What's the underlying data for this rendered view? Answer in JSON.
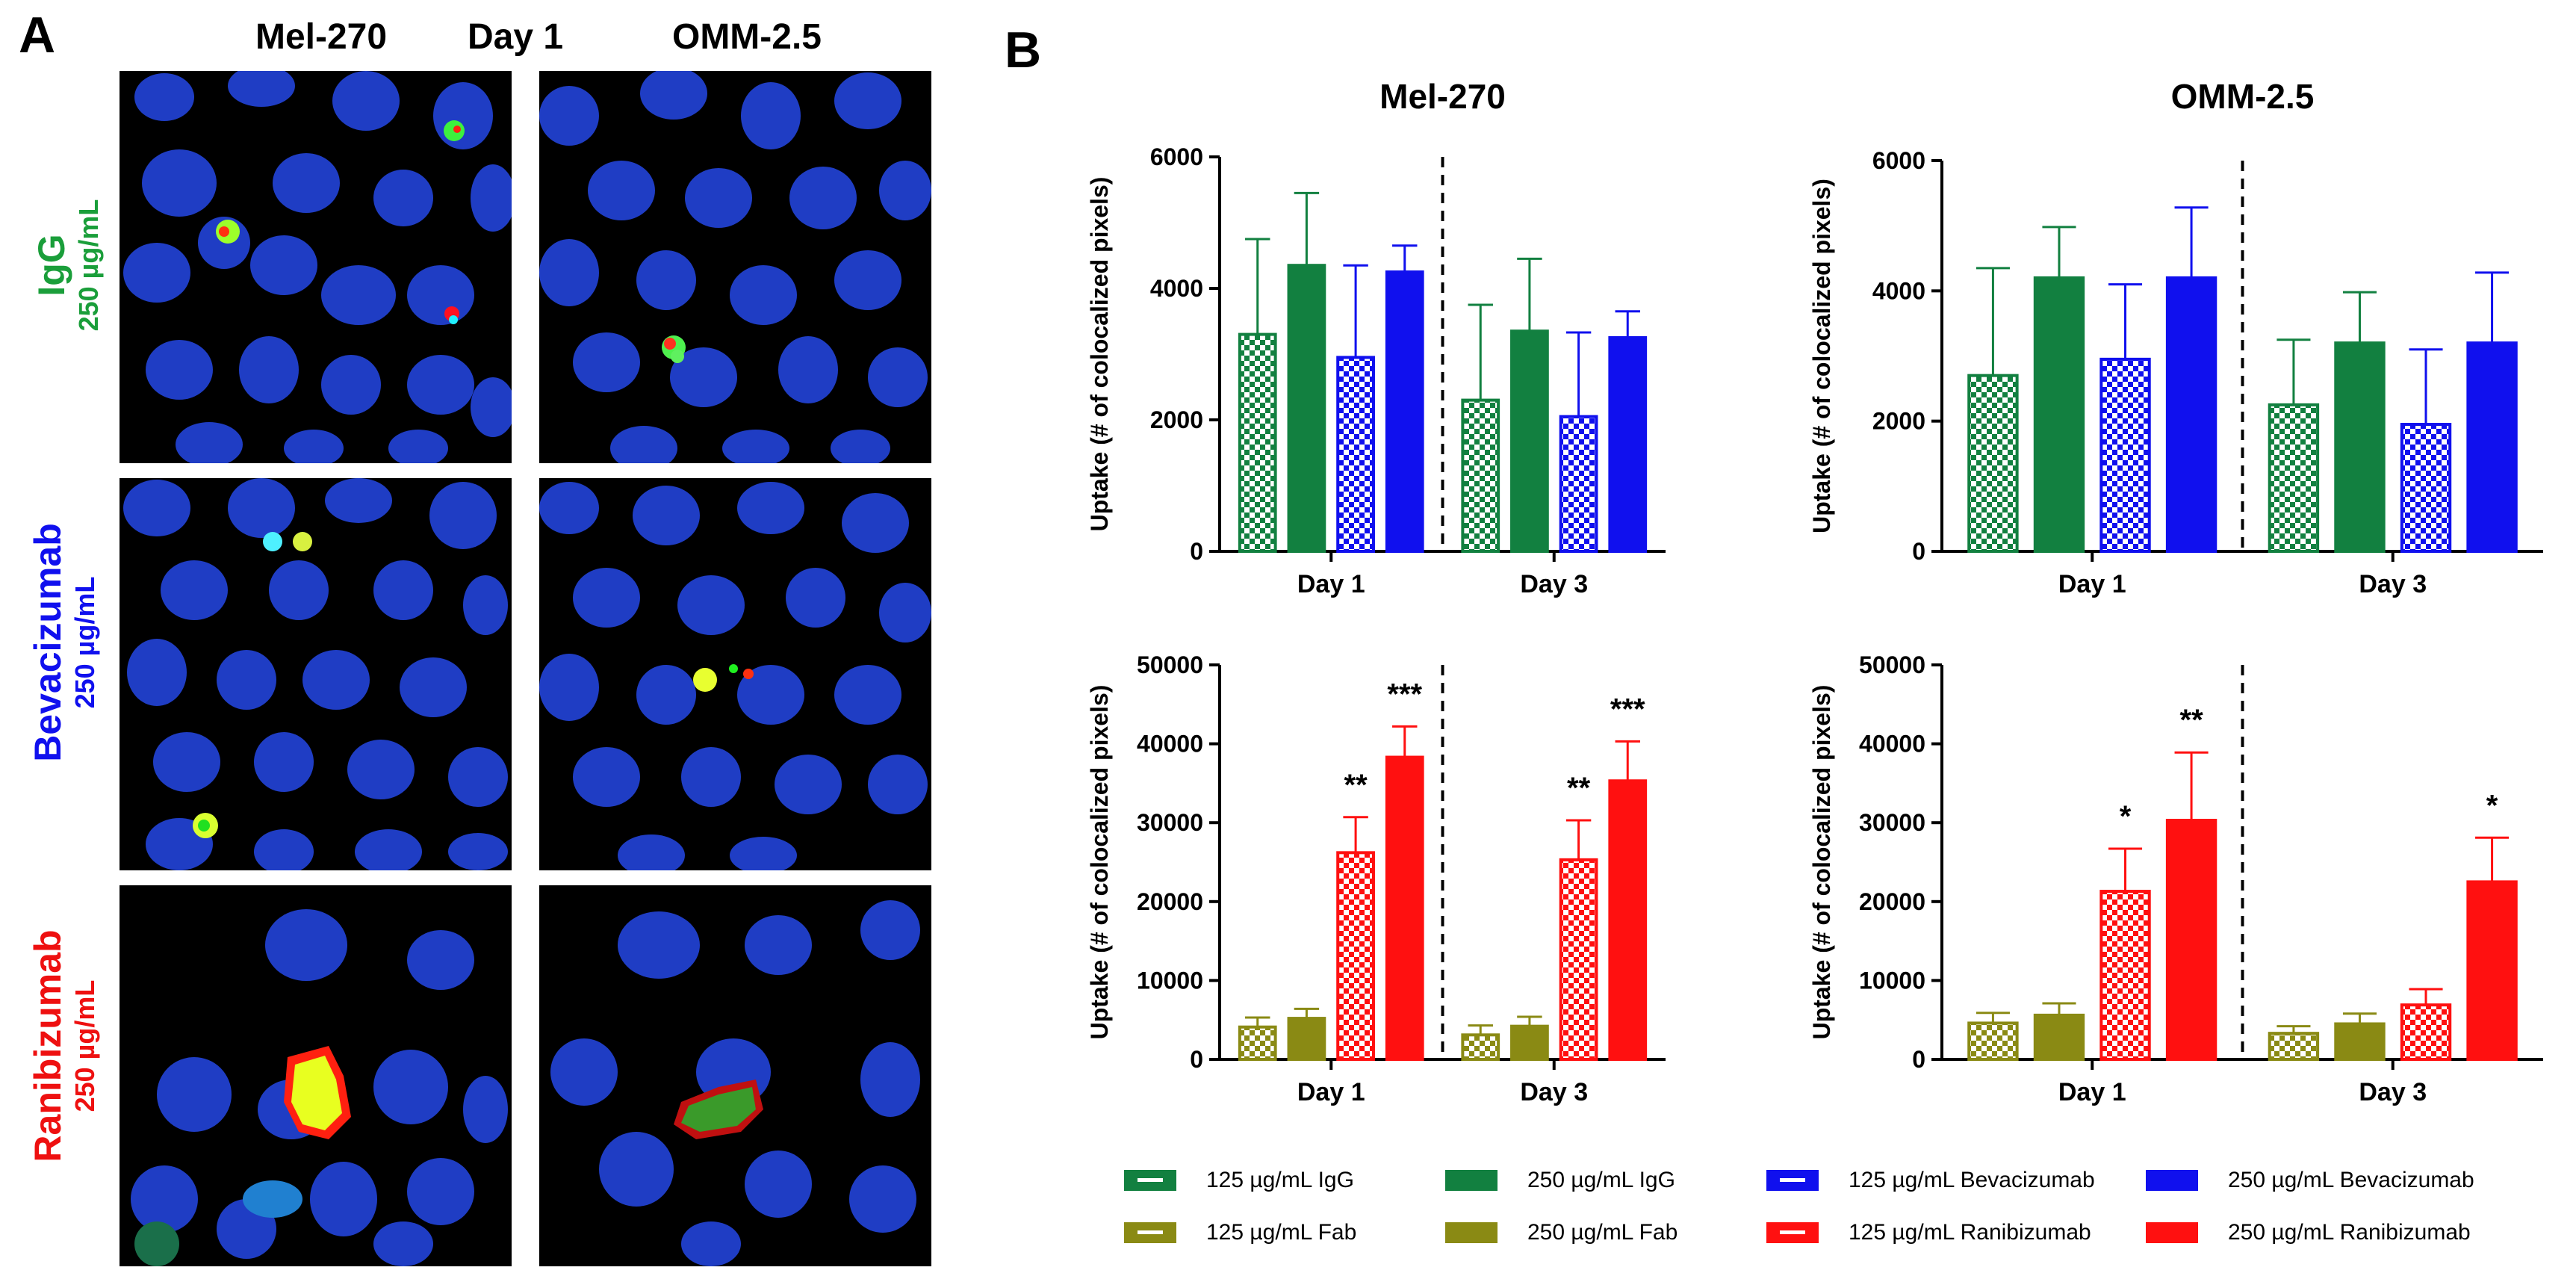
{
  "panelA": {
    "letter": "A",
    "columns": [
      "Mel-270",
      "Day 1",
      "OMM-2.5"
    ],
    "rows": [
      {
        "name": "IgG",
        "conc": "250 µg/mL",
        "color": "#1a9e3a"
      },
      {
        "name": "Bevacizumab",
        "conc": "250 µg/mL",
        "color": "#1010ee"
      },
      {
        "name": "Ranibizumab",
        "conc": "250 µg/mL",
        "color": "#ee1010"
      }
    ]
  },
  "panelB": {
    "letter": "B",
    "ylabel": "Uptake (# of colocalized pixels)"
  },
  "colors": {
    "igg": "#128040",
    "bev": "#1010ee",
    "fab": "#8a8a14",
    "rani": "#ff1010"
  },
  "legend": [
    {
      "label": "125 µg/mL IgG",
      "color": "#128040",
      "pattern": "checker"
    },
    {
      "label": "250 µg/mL IgG",
      "color": "#128040",
      "pattern": "solid"
    },
    {
      "label": "125 µg/mL Bevacizumab",
      "color": "#1010ee",
      "pattern": "checker"
    },
    {
      "label": "250 µg/mL Bevacizumab",
      "color": "#1010ee",
      "pattern": "solid"
    },
    {
      "label": "125 µg/mL Fab",
      "color": "#8a8a14",
      "pattern": "checker"
    },
    {
      "label": "250 µg/mL Fab",
      "color": "#8a8a14",
      "pattern": "solid"
    },
    {
      "label": "125 µg/mL Ranibizumab",
      "color": "#ff1010",
      "pattern": "checker"
    },
    {
      "label": "250 µg/mL Ranibizumab",
      "color": "#ff1010",
      "pattern": "solid"
    }
  ],
  "chart_data": [
    {
      "type": "bar",
      "title": "Mel-270",
      "ylabel": "Uptake (# of colocalized pixels)",
      "ylim": [
        0,
        6000
      ],
      "yticks": [
        0,
        2000,
        4000,
        6000
      ],
      "categories": [
        "Day 1",
        "Day 3"
      ],
      "series": [
        {
          "name": "125 µg/mL IgG",
          "color": "#128040",
          "pattern": "checker",
          "values": [
            3300,
            2300
          ],
          "errors": [
            1450,
            1450
          ],
          "sig": [
            "",
            ""
          ]
        },
        {
          "name": "250 µg/mL IgG",
          "color": "#128040",
          "pattern": "solid",
          "values": [
            4350,
            3350
          ],
          "errors": [
            1100,
            1100
          ],
          "sig": [
            "",
            ""
          ]
        },
        {
          "name": "125 µg/mL Bevacizumab",
          "color": "#1010ee",
          "pattern": "checker",
          "values": [
            2950,
            2050
          ],
          "errors": [
            1400,
            1280
          ],
          "sig": [
            "",
            ""
          ]
        },
        {
          "name": "250 µg/mL Bevacizumab",
          "color": "#1010ee",
          "pattern": "solid",
          "values": [
            4250,
            3250
          ],
          "errors": [
            400,
            400
          ],
          "sig": [
            "",
            ""
          ]
        }
      ]
    },
    {
      "type": "bar",
      "title": "OMM-2.5",
      "ylabel": "Uptake (# of colocalized pixels)",
      "ylim": [
        0,
        6000
      ],
      "yticks": [
        0,
        2000,
        4000,
        6000
      ],
      "categories": [
        "Day 1",
        "Day 3"
      ],
      "series": [
        {
          "name": "125 µg/mL IgG",
          "color": "#128040",
          "pattern": "checker",
          "values": [
            2700,
            2250
          ],
          "errors": [
            1650,
            1000
          ],
          "sig": [
            "",
            ""
          ]
        },
        {
          "name": "250 µg/mL IgG",
          "color": "#128040",
          "pattern": "solid",
          "values": [
            4200,
            3200
          ],
          "errors": [
            780,
            780
          ],
          "sig": [
            "",
            ""
          ]
        },
        {
          "name": "125 µg/mL Bevacizumab",
          "color": "#1010ee",
          "pattern": "checker",
          "values": [
            2950,
            1950
          ],
          "errors": [
            1150,
            1150
          ],
          "sig": [
            "",
            ""
          ]
        },
        {
          "name": "250 µg/mL Bevacizumab",
          "color": "#1010ee",
          "pattern": "solid",
          "values": [
            4200,
            3200
          ],
          "errors": [
            1080,
            1080
          ],
          "sig": [
            "",
            ""
          ]
        }
      ]
    },
    {
      "type": "bar",
      "title": "",
      "ylabel": "Uptake (# of colocalized pixels)",
      "ylim": [
        0,
        50000
      ],
      "yticks": [
        0,
        10000,
        20000,
        30000,
        40000,
        50000
      ],
      "categories": [
        "Day 1",
        "Day 3"
      ],
      "series": [
        {
          "name": "125 µg/mL Fab",
          "color": "#8a8a14",
          "pattern": "checker",
          "values": [
            4100,
            3100
          ],
          "errors": [
            1200,
            1200
          ],
          "sig": [
            "",
            ""
          ]
        },
        {
          "name": "250 µg/mL Fab",
          "color": "#8a8a14",
          "pattern": "solid",
          "values": [
            5200,
            4200
          ],
          "errors": [
            1200,
            1200
          ],
          "sig": [
            "",
            ""
          ]
        },
        {
          "name": "125 µg/mL Ranibizumab",
          "color": "#ff1010",
          "pattern": "checker",
          "values": [
            26200,
            25300
          ],
          "errors": [
            4500,
            5000
          ],
          "sig": [
            "**",
            "**"
          ]
        },
        {
          "name": "250 µg/mL Ranibizumab",
          "color": "#ff1010",
          "pattern": "solid",
          "values": [
            38300,
            35300
          ],
          "errors": [
            3900,
            5000
          ],
          "sig": [
            "***",
            "***"
          ]
        }
      ]
    },
    {
      "type": "bar",
      "title": "",
      "ylabel": "Uptake (# of colocalized pixels)",
      "ylim": [
        0,
        50000
      ],
      "yticks": [
        0,
        10000,
        20000,
        30000,
        40000,
        50000
      ],
      "categories": [
        "Day 1",
        "Day 3"
      ],
      "series": [
        {
          "name": "125 µg/mL Fab",
          "color": "#8a8a14",
          "pattern": "checker",
          "values": [
            4600,
            3300
          ],
          "errors": [
            1300,
            900
          ],
          "sig": [
            "",
            ""
          ]
        },
        {
          "name": "250 µg/mL Fab",
          "color": "#8a8a14",
          "pattern": "solid",
          "values": [
            5600,
            4500
          ],
          "errors": [
            1500,
            1300
          ],
          "sig": [
            "",
            ""
          ]
        },
        {
          "name": "125 µg/mL Ranibizumab",
          "color": "#ff1010",
          "pattern": "checker",
          "values": [
            21300,
            6900
          ],
          "errors": [
            5400,
            2000
          ],
          "sig": [
            "*",
            ""
          ]
        },
        {
          "name": "250 µg/mL Ranibizumab",
          "color": "#ff1010",
          "pattern": "solid",
          "values": [
            30300,
            22500
          ],
          "errors": [
            8600,
            5600
          ],
          "sig": [
            "**",
            "*"
          ]
        }
      ]
    }
  ]
}
